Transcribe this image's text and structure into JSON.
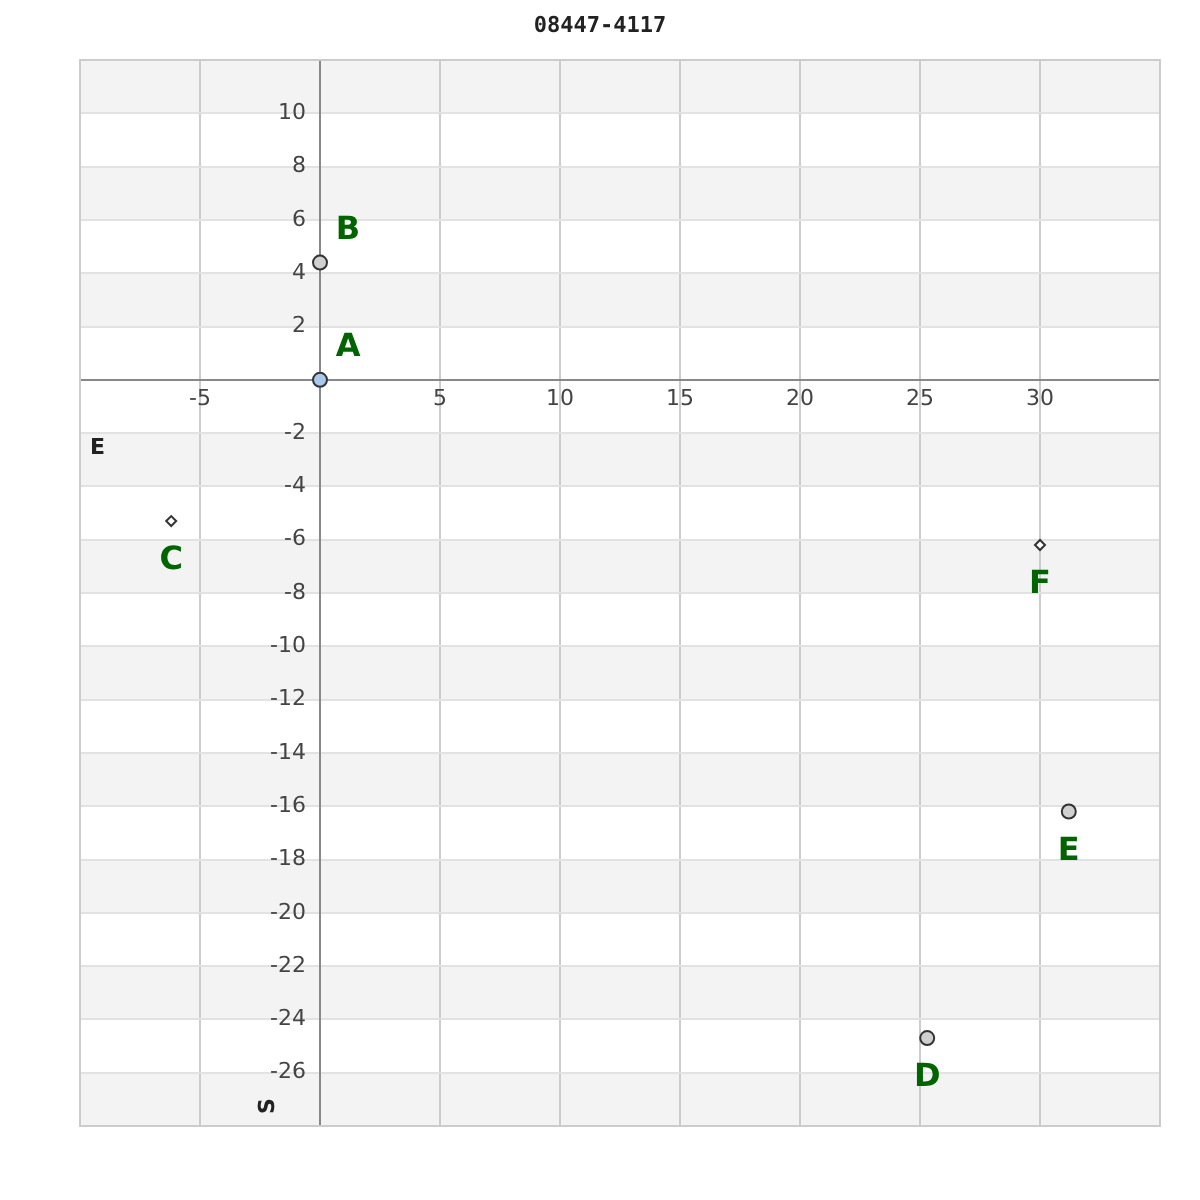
{
  "chart_data": {
    "type": "scatter",
    "title": "08447-4117",
    "xlabel": "E",
    "ylabel": "S",
    "xlim": [
      -10,
      35
    ],
    "ylim": [
      -28,
      12
    ],
    "xticks": [
      -5,
      5,
      10,
      15,
      20,
      25,
      30
    ],
    "yticks": [
      -26,
      -24,
      -22,
      -20,
      -18,
      -16,
      -14,
      -12,
      -10,
      -8,
      -6,
      -4,
      -2,
      2,
      4,
      6,
      8,
      10
    ],
    "grid": true,
    "legend": false,
    "series": [
      {
        "name": "A",
        "color": "#a8c8ec",
        "x": [
          0
        ],
        "values": [
          0
        ],
        "marker": "circle"
      },
      {
        "name": "B",
        "color": "#d0d0d0",
        "x": [
          0
        ],
        "values": [
          4.4
        ],
        "marker": "circle"
      },
      {
        "name": "C",
        "color": "#ffffff",
        "x": [
          -6.2
        ],
        "values": [
          -5.3
        ],
        "marker": "diamond"
      },
      {
        "name": "D",
        "color": "#d0d0d0",
        "x": [
          25.3
        ],
        "values": [
          -24.7
        ],
        "marker": "circle"
      },
      {
        "name": "E",
        "color": "#d0d0d0",
        "x": [
          31.2
        ],
        "values": [
          -16.2
        ],
        "marker": "circle"
      },
      {
        "name": "F",
        "color": "#ffffff",
        "x": [
          30
        ],
        "values": [
          -6.2
        ],
        "marker": "diamond"
      }
    ]
  }
}
